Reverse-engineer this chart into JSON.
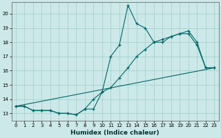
{
  "xlabel": "Humidex (Indice chaleur)",
  "bg_color": "#cce8e8",
  "grid_color": "#9ecece",
  "line_color": "#006666",
  "xlim": [
    -0.5,
    23.5
  ],
  "ylim": [
    12.5,
    20.8
  ],
  "yticks": [
    13,
    14,
    15,
    16,
    17,
    18,
    19,
    20
  ],
  "xticks": [
    0,
    1,
    2,
    3,
    4,
    5,
    6,
    7,
    8,
    9,
    10,
    11,
    12,
    13,
    14,
    15,
    16,
    17,
    18,
    19,
    20,
    21,
    22,
    23
  ],
  "series1_x": [
    0,
    1,
    2,
    3,
    4,
    5,
    6,
    7,
    8,
    9,
    10,
    11,
    12,
    13,
    14,
    15,
    16,
    17,
    18,
    19,
    20,
    21,
    22,
    23
  ],
  "series1_y": [
    13.5,
    13.5,
    13.2,
    13.2,
    13.2,
    13.0,
    13.0,
    12.9,
    13.3,
    13.3,
    14.5,
    17.0,
    17.8,
    20.6,
    19.3,
    19.0,
    18.0,
    18.0,
    18.4,
    18.6,
    18.6,
    17.8,
    16.2,
    16.2
  ],
  "series2_x": [
    0,
    1,
    2,
    3,
    4,
    5,
    6,
    7,
    8,
    9,
    10,
    11,
    12,
    13,
    14,
    15,
    16,
    17,
    18,
    19,
    20,
    21,
    22,
    23
  ],
  "series2_y": [
    13.5,
    13.5,
    13.2,
    13.2,
    13.2,
    13.0,
    13.0,
    12.9,
    13.3,
    14.0,
    14.5,
    14.8,
    15.5,
    16.2,
    17.0,
    17.5,
    18.0,
    18.2,
    18.4,
    18.6,
    18.8,
    18.0,
    16.2,
    16.2
  ],
  "series3_x": [
    0,
    23
  ],
  "series3_y": [
    13.5,
    16.2
  ],
  "xlabel_fontsize": 6.5,
  "xlabel_fontweight": "bold",
  "tick_fontsize": 5.0
}
